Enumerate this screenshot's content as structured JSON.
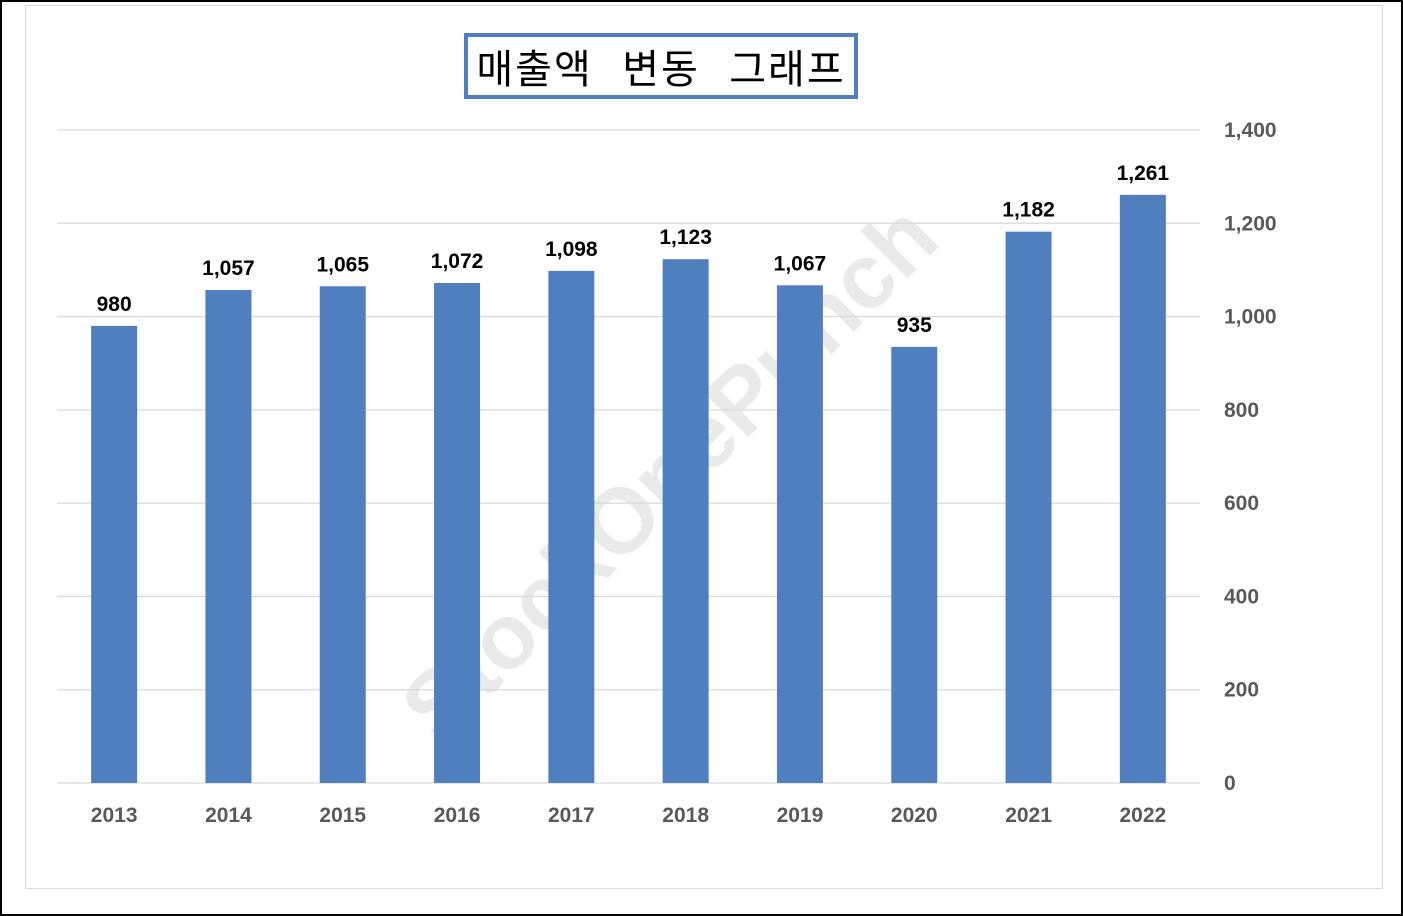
{
  "chart_data": {
    "type": "bar",
    "title": "매출액  변동  그래프",
    "categories": [
      "2013",
      "2014",
      "2015",
      "2016",
      "2017",
      "2018",
      "2019",
      "2020",
      "2021",
      "2022"
    ],
    "series": [
      {
        "values": [
          980,
          1057,
          1065,
          1072,
          1098,
          1123,
          1067,
          935,
          1182,
          1261
        ]
      }
    ],
    "data_labels": [
      "980",
      "1,057",
      "1,065",
      "1,072",
      "1,098",
      "1,123",
      "1,067",
      "935",
      "1,182",
      "1,261"
    ],
    "y_ticks": [
      "0",
      "200",
      "400",
      "600",
      "800",
      "1,000",
      "1,200",
      "1,400"
    ],
    "y_tick_values": [
      0,
      200,
      400,
      600,
      800,
      1000,
      1200,
      1400
    ],
    "ylim": [
      0,
      1400
    ],
    "y_axis_side": "right",
    "grid": true,
    "legend": "none",
    "bar_color": "#4f7fbf",
    "title_border_color": "#4f7fbf"
  },
  "watermark": "StockOnePunch"
}
